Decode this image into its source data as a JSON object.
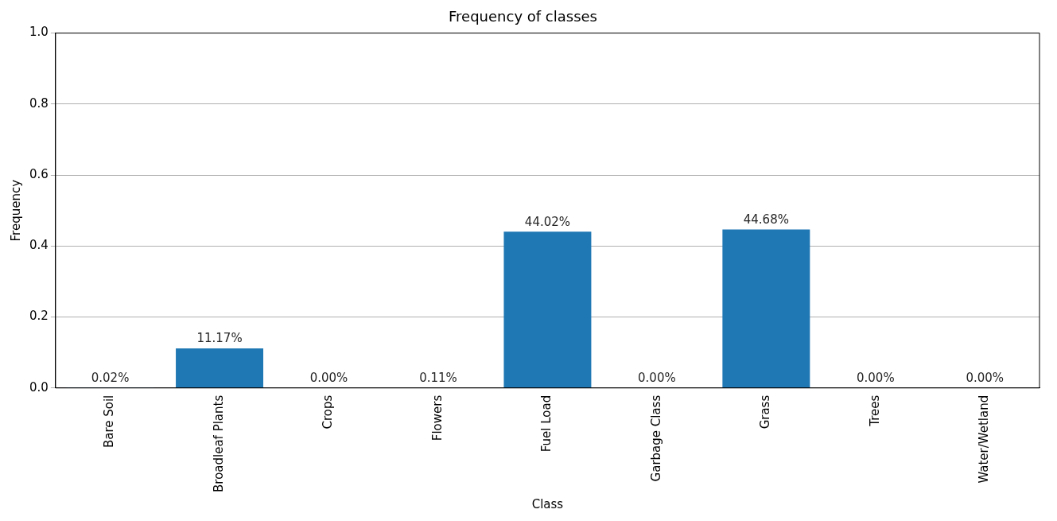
{
  "chart_data": {
    "type": "bar",
    "title": "Frequency of classes",
    "xlabel": "Class",
    "ylabel": "Frequency",
    "categories": [
      "Bare Soil",
      "Broadleaf Plants",
      "Crops",
      "Flowers",
      "Fuel Load",
      "Garbage Class",
      "Grass",
      "Trees",
      "Water/Wetland"
    ],
    "values": [
      0.0002,
      0.1117,
      0,
      0.0011,
      0.4402,
      0,
      0.4468,
      0,
      0
    ],
    "value_labels": [
      "0.02%",
      "11.17%",
      "0.00%",
      "0.11%",
      "44.02%",
      "0.00%",
      "44.68%",
      "0.00%",
      "0.00%"
    ],
    "color": "#1f77b4",
    "ylim": [
      0,
      1
    ],
    "yticks": [
      {
        "value": 0,
        "label": "0.0"
      },
      {
        "value": 0.2,
        "label": "0.2"
      },
      {
        "value": 0.4,
        "label": "0.4"
      },
      {
        "value": 0.6,
        "label": "0.6"
      },
      {
        "value": 0.8,
        "label": "0.8"
      },
      {
        "value": 1,
        "label": "1.0"
      }
    ],
    "grid": "y",
    "legend": false
  }
}
